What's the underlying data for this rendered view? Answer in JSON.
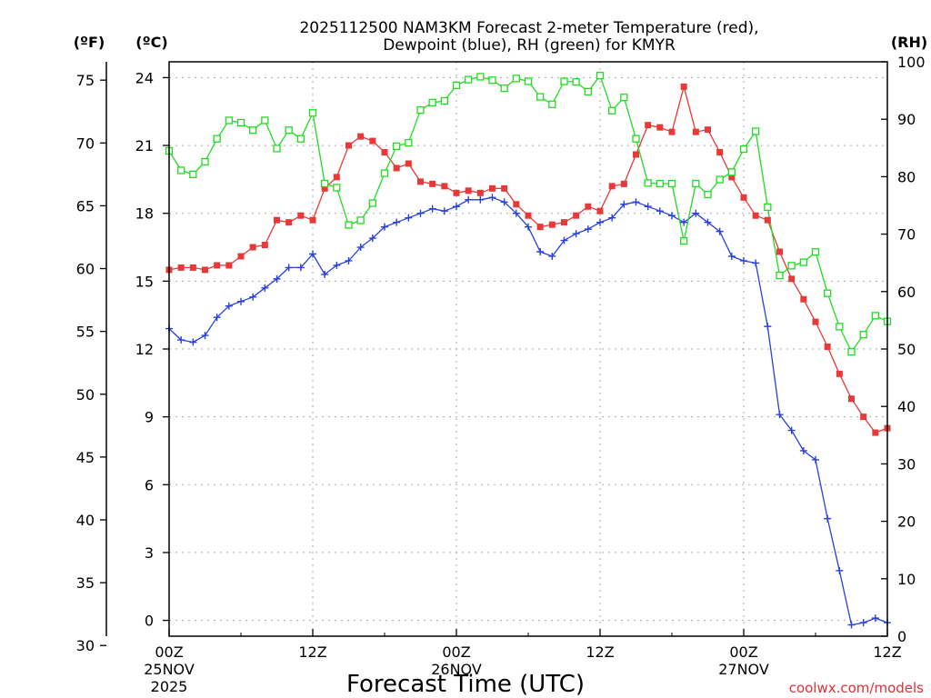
{
  "chart_data": {
    "type": "line",
    "title_line1": "2025112500 NAM3KM Forecast 2-meter Temperature (red),",
    "title_line2": "Dewpoint (blue), RH (green) for KMYR",
    "xlabel": "Forecast Time (UTC)",
    "credit": "coolwx.com/models",
    "units": {
      "left_outer": "(ºF)",
      "left_inner": "(ºC)",
      "right": "(RH)"
    },
    "x_hours": [
      0,
      1,
      2,
      3,
      4,
      5,
      6,
      7,
      8,
      9,
      10,
      11,
      12,
      13,
      14,
      15,
      16,
      17,
      18,
      19,
      20,
      21,
      22,
      23,
      24,
      25,
      26,
      27,
      28,
      29,
      30,
      31,
      32,
      33,
      34,
      35,
      36,
      37,
      38,
      39,
      40,
      41,
      42,
      43,
      44,
      45,
      46,
      47,
      48,
      49,
      50,
      51,
      52,
      53,
      54,
      55,
      56,
      57,
      58,
      59,
      60
    ],
    "xlim_hours": [
      0,
      60
    ],
    "x_ticks": [
      {
        "hour": 0,
        "label": "00Z",
        "date": "25NOV",
        "year": "2025"
      },
      {
        "hour": 12,
        "label": "12Z",
        "date": "",
        "year": ""
      },
      {
        "hour": 24,
        "label": "00Z",
        "date": "26NOV",
        "year": ""
      },
      {
        "hour": 36,
        "label": "12Z",
        "date": "",
        "year": ""
      },
      {
        "hour": 48,
        "label": "00Z",
        "date": "27NOV",
        "year": ""
      },
      {
        "hour": 60,
        "label": "12Z",
        "date": "",
        "year": ""
      }
    ],
    "ylim_c": [
      -0.7,
      24.7
    ],
    "y_ticks_c": [
      "0",
      "3",
      "6",
      "9",
      "12",
      "15",
      "18",
      "21",
      "24"
    ],
    "y_ticks_f": [
      "30",
      "35",
      "40",
      "45",
      "50",
      "55",
      "60",
      "65",
      "70",
      "75"
    ],
    "y_ticks_rh": [
      "0",
      "10",
      "20",
      "30",
      "40",
      "50",
      "60",
      "70",
      "80",
      "90",
      "100"
    ],
    "ylim_rh": [
      0,
      100
    ],
    "series": [
      {
        "name": "Temperature (°C)",
        "color": "#e83838",
        "marker": "filled-square",
        "axis": "c",
        "values": [
          15.5,
          15.6,
          15.6,
          15.5,
          15.7,
          15.7,
          16.1,
          16.5,
          16.6,
          17.7,
          17.6,
          17.9,
          17.7,
          19.1,
          19.6,
          21.0,
          21.4,
          21.2,
          20.7,
          20.0,
          20.2,
          19.4,
          19.3,
          19.2,
          18.9,
          19.0,
          18.9,
          19.1,
          19.1,
          18.4,
          17.9,
          17.4,
          17.5,
          17.6,
          17.9,
          18.3,
          18.1,
          19.2,
          19.3,
          20.6,
          21.9,
          21.8,
          21.6,
          23.6,
          21.6,
          21.7,
          20.7,
          19.6,
          18.7,
          17.9,
          17.7,
          16.3,
          15.1,
          14.2,
          13.2,
          12.1,
          10.9,
          9.8,
          9.0,
          8.3,
          8.5
        ]
      },
      {
        "name": "Dewpoint (°C)",
        "color": "#2840e0",
        "marker": "plus",
        "axis": "c",
        "values": [
          12.9,
          12.4,
          12.3,
          12.6,
          13.4,
          13.9,
          14.1,
          14.3,
          14.7,
          15.1,
          15.6,
          15.6,
          16.2,
          15.3,
          15.7,
          15.9,
          16.5,
          16.9,
          17.4,
          17.6,
          17.8,
          18.0,
          18.2,
          18.1,
          18.3,
          18.6,
          18.6,
          18.7,
          18.5,
          18.0,
          17.4,
          16.3,
          16.1,
          16.8,
          17.1,
          17.3,
          17.6,
          17.8,
          18.4,
          18.5,
          18.3,
          18.1,
          17.9,
          17.6,
          18.0,
          17.6,
          17.2,
          16.1,
          15.9,
          15.8,
          13.0,
          9.1,
          8.4,
          7.5,
          7.1,
          4.5,
          2.2,
          -0.2,
          -0.1,
          0.1,
          -0.1
        ]
      },
      {
        "name": "RH (%)",
        "color": "#20dd20",
        "marker": "open-square",
        "axis": "rh",
        "values": [
          84.5,
          81.1,
          80.4,
          82.6,
          86.6,
          89.8,
          89.4,
          88.1,
          89.8,
          84.9,
          88.1,
          86.6,
          91.1,
          78.8,
          78.1,
          71.6,
          72.4,
          75.4,
          80.6,
          85.3,
          85.9,
          91.6,
          92.9,
          93.2,
          95.9,
          96.9,
          97.4,
          96.8,
          95.4,
          97.1,
          96.6,
          93.9,
          92.6,
          96.6,
          96.5,
          94.8,
          97.6,
          91.5,
          93.8,
          86.6,
          78.9,
          78.8,
          78.8,
          68.8,
          78.8,
          76.9,
          79.5,
          80.8,
          84.8,
          87.9,
          74.7,
          62.8,
          64.5,
          65.1,
          66.9,
          59.7,
          53.9,
          49.5,
          52.5,
          55.8,
          54.8
        ]
      }
    ]
  }
}
